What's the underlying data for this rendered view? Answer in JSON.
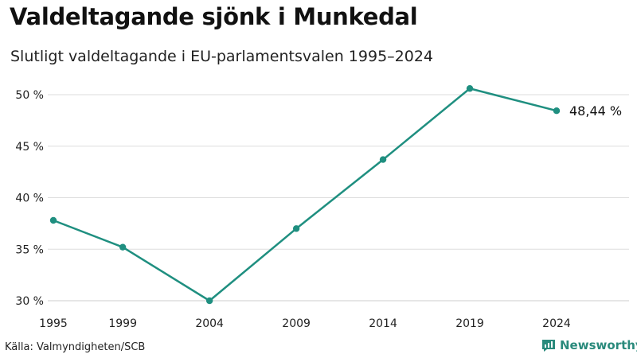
{
  "title": "Valdeltagande sjönk i Munkedal",
  "subtitle": "Slutligt valdeltagande i EU-parlamentsvalen 1995–2024",
  "source": "Källa: Valmyndigheten/SCB",
  "brand": "Newsworthy",
  "colors": {
    "line": "#1f8f80",
    "grid": "#dddddd",
    "text": "#1a1a1a"
  },
  "chart_data": {
    "type": "line",
    "title": "Valdeltagande sjönk i Munkedal",
    "xlabel": "",
    "ylabel": "",
    "x": [
      1995,
      1999,
      2004,
      2009,
      2014,
      2019,
      2024
    ],
    "xticks": [
      "1995",
      "1999",
      "2004",
      "2009",
      "2014",
      "2019",
      "2024"
    ],
    "yticks": [
      30,
      35,
      40,
      45,
      50
    ],
    "ytick_labels": [
      "30 %",
      "35 %",
      "40 %",
      "45 %",
      "50 %"
    ],
    "ylim": [
      30,
      50
    ],
    "series": [
      {
        "name": "Valdeltagande",
        "values": [
          37.8,
          35.2,
          30.0,
          37.0,
          43.7,
          50.6,
          48.44
        ]
      }
    ],
    "end_label": "48,44 %",
    "grid": true
  }
}
